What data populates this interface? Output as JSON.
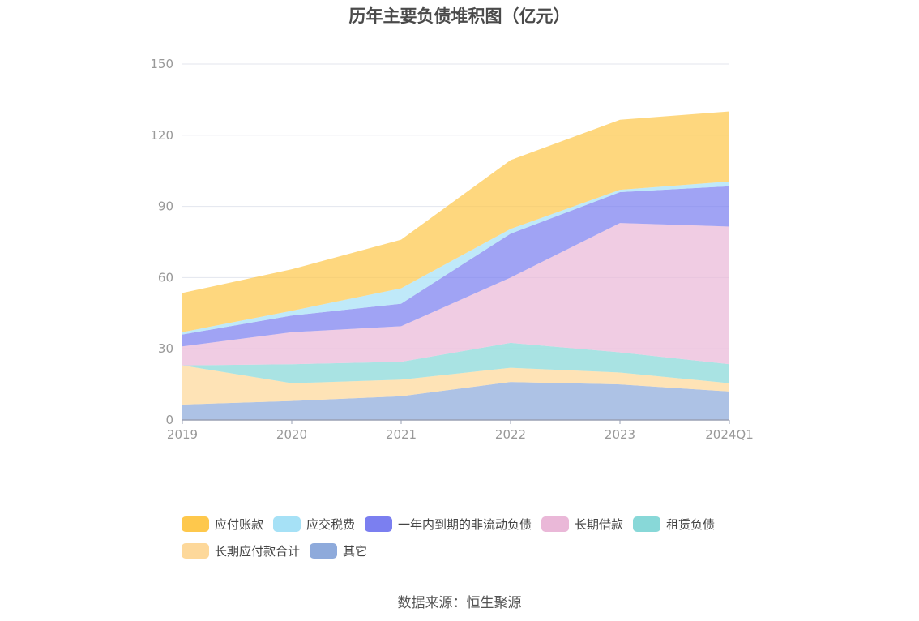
{
  "chart_data": {
    "type": "area",
    "stacked": true,
    "title": "历年主要负债堆积图（亿元）",
    "categories": [
      "2019",
      "2020",
      "2021",
      "2022",
      "2023",
      "2024Q1"
    ],
    "ylim": [
      0,
      150
    ],
    "yticks": [
      0,
      30,
      60,
      90,
      120,
      150
    ],
    "grid": true,
    "legend_position": "bottom",
    "series": [
      {
        "name": "其它",
        "color": "#8eaadb",
        "values": [
          6.5,
          8,
          10,
          16,
          15,
          12
        ]
      },
      {
        "name": "长期应付款合计",
        "color": "#fdd89a",
        "values": [
          16.5,
          7.5,
          7,
          6,
          5,
          3.5
        ]
      },
      {
        "name": "租赁负债",
        "color": "#88d8d8",
        "values": [
          0,
          8,
          7.5,
          10.5,
          8.5,
          8
        ]
      },
      {
        "name": "长期借款",
        "color": "#eab8d8",
        "values": [
          8,
          13.5,
          15,
          27.5,
          54.5,
          58
        ]
      },
      {
        "name": "一年内到期的非流动负债",
        "color": "#7b7ff0",
        "values": [
          5,
          7,
          9.5,
          18.5,
          13,
          17
        ]
      },
      {
        "name": "应交税费",
        "color": "#a6e1f6",
        "values": [
          1,
          2,
          6.5,
          2,
          1,
          2
        ]
      },
      {
        "name": "应付账款",
        "color": "#fec84c",
        "values": [
          16.5,
          17.5,
          20.5,
          29,
          29.5,
          29.5
        ]
      }
    ]
  },
  "legend": {
    "row1": [
      {
        "label": "应付账款",
        "color": "#fec84c"
      },
      {
        "label": "应交税费",
        "color": "#a6e1f6"
      },
      {
        "label": "一年内到期的非流动负债",
        "color": "#7b7ff0"
      },
      {
        "label": "长期借款",
        "color": "#eab8d8"
      },
      {
        "label": "租赁负债",
        "color": "#88d8d8"
      }
    ],
    "row2": [
      {
        "label": "长期应付款合计",
        "color": "#fdd89a"
      },
      {
        "label": "其它",
        "color": "#8eaadb"
      }
    ]
  },
  "source": "数据来源：恒生聚源"
}
